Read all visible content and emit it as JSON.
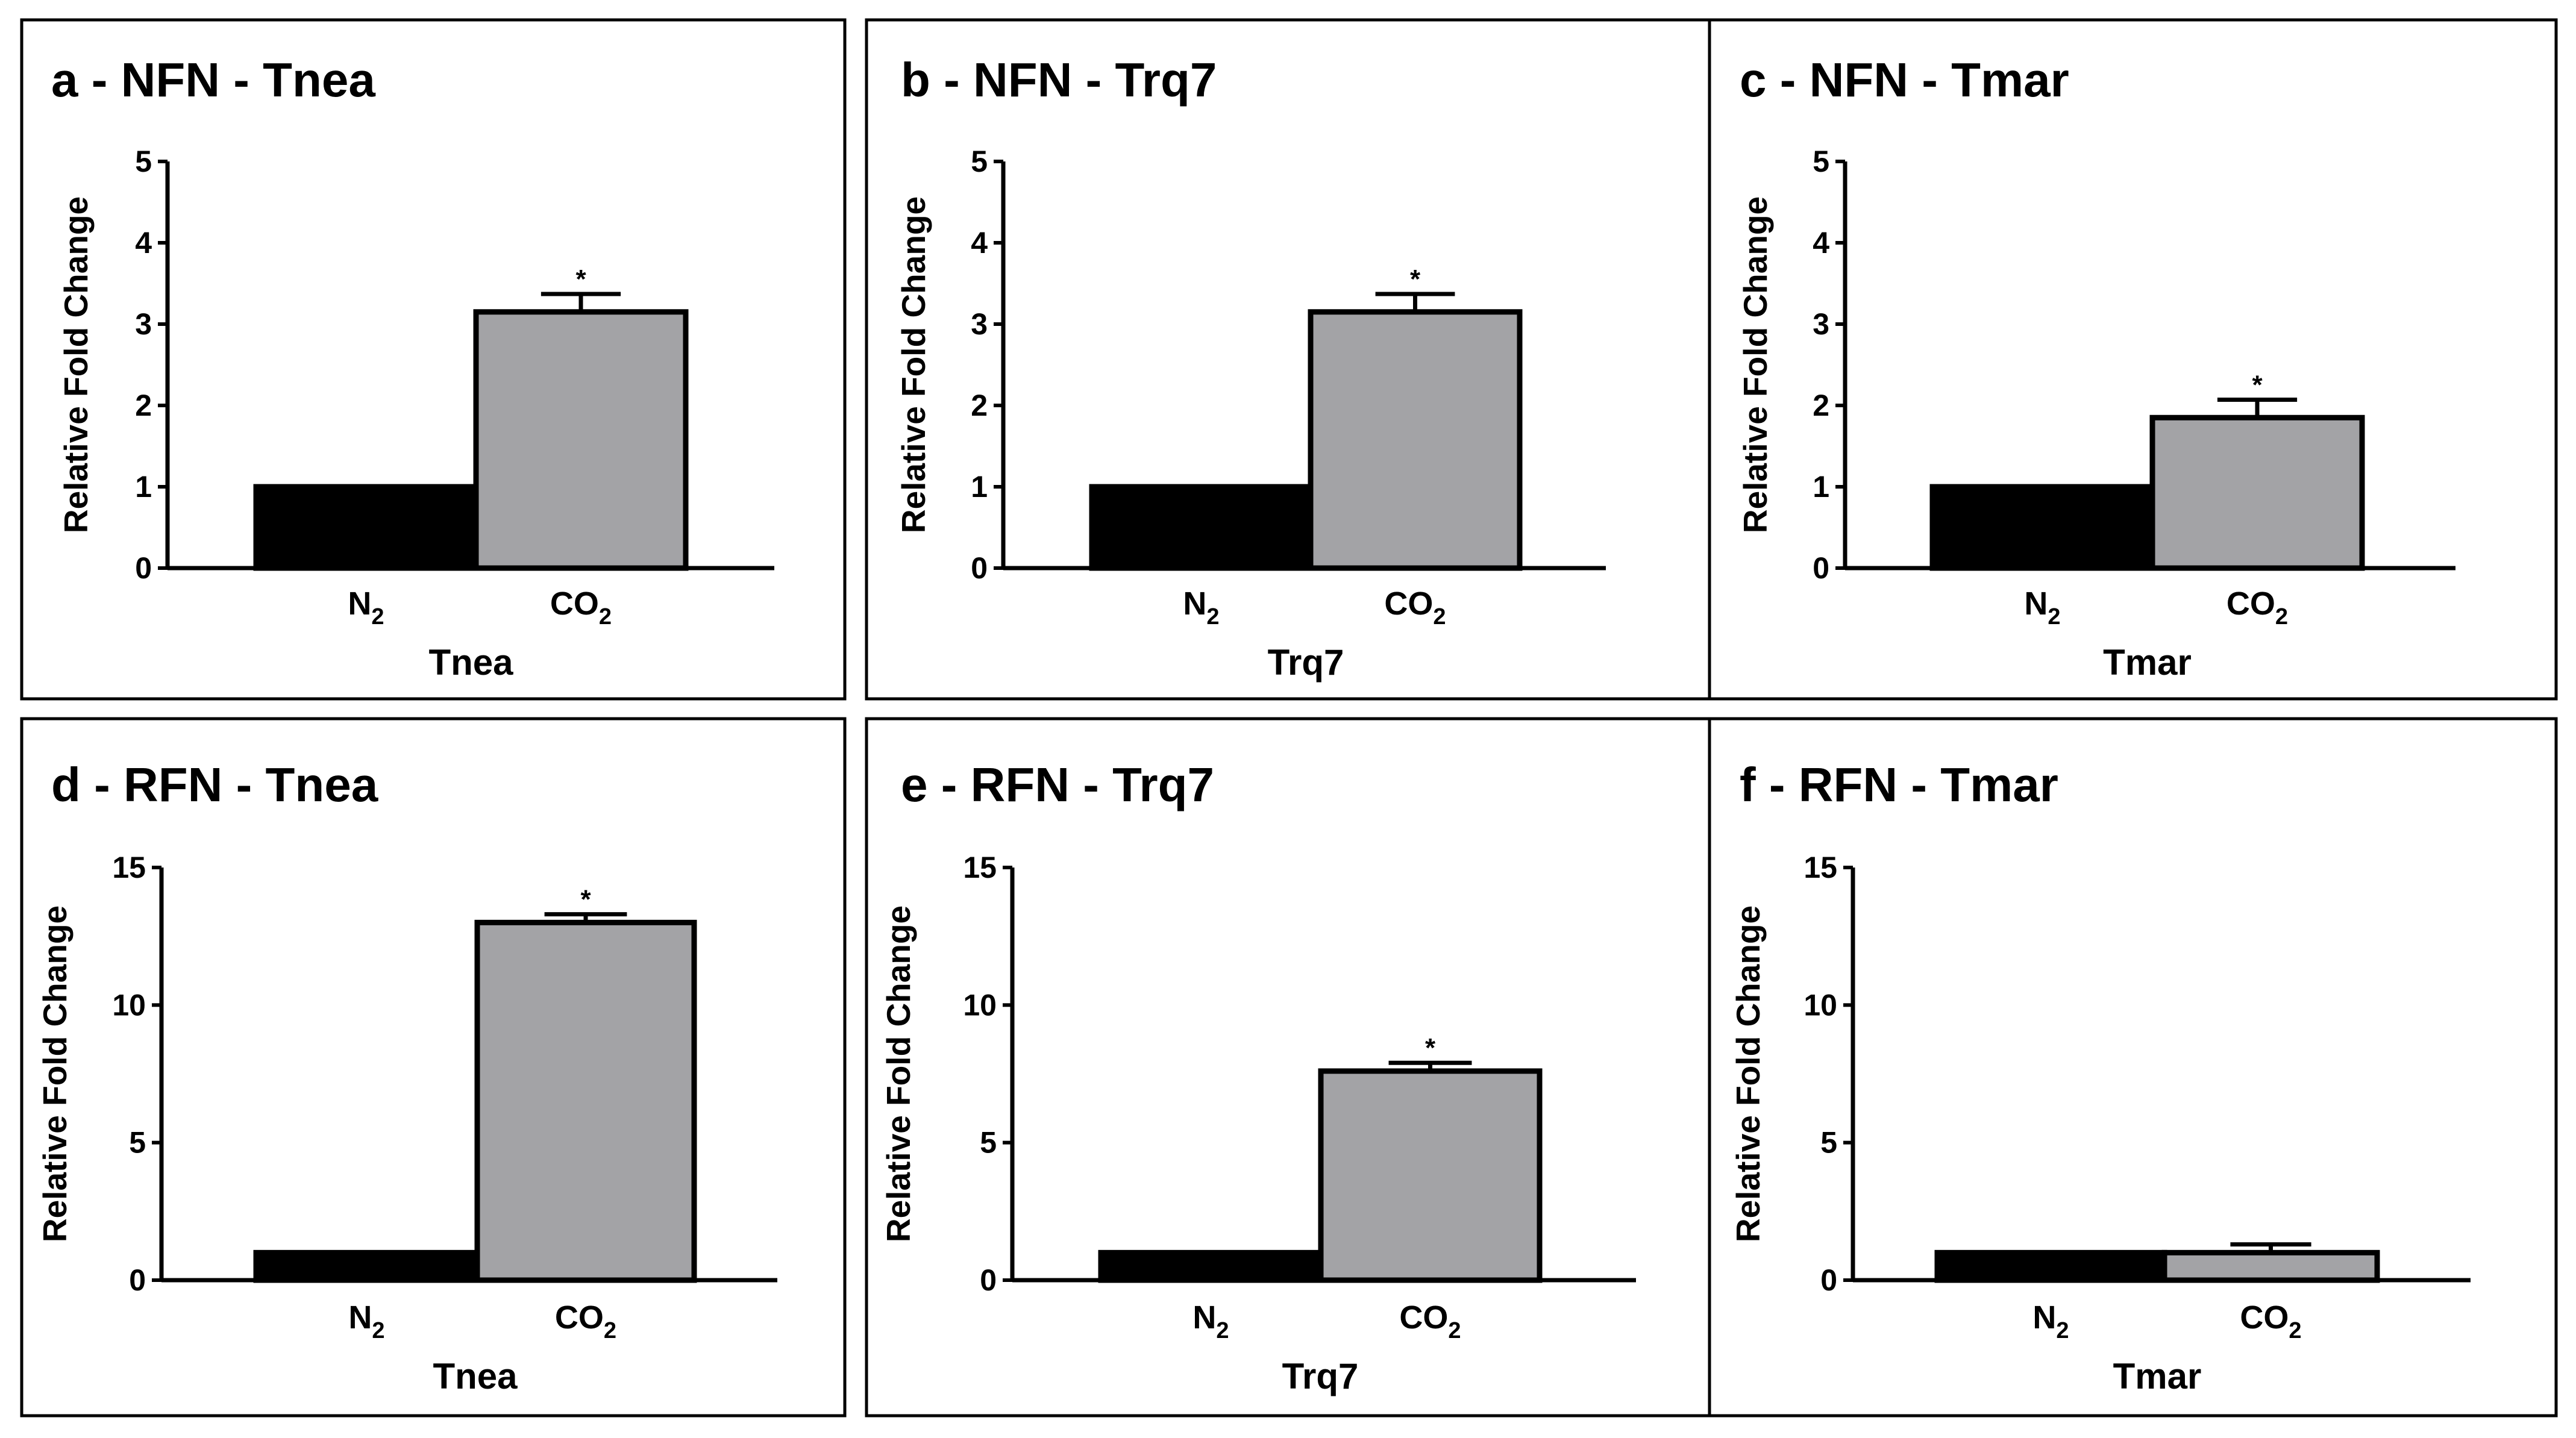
{
  "chart_data": [
    {
      "id": "a",
      "type": "bar",
      "title": "a - NFN - Tnea",
      "categories": [
        {
          "base": "N",
          "sub": "2"
        },
        {
          "base": "CO",
          "sub": "2"
        }
      ],
      "values": [
        1.0,
        3.15
      ],
      "errors": [
        0,
        0.22
      ],
      "significance": [
        "",
        "*"
      ],
      "bar_colors": [
        "#000000",
        "#a3a3a6"
      ],
      "xlabel": "Tnea",
      "ylabel": "Relative Fold Change",
      "ylim": [
        0,
        5
      ],
      "yticks": [
        0,
        1,
        2,
        3,
        4,
        5
      ]
    },
    {
      "id": "b",
      "type": "bar",
      "title": "b - NFN - Trq7",
      "categories": [
        {
          "base": "N",
          "sub": "2"
        },
        {
          "base": "CO",
          "sub": "2"
        }
      ],
      "values": [
        1.0,
        3.15
      ],
      "errors": [
        0,
        0.22
      ],
      "significance": [
        "",
        "*"
      ],
      "bar_colors": [
        "#000000",
        "#a3a3a6"
      ],
      "xlabel": "Trq7",
      "ylabel": "Relative Fold Change",
      "ylim": [
        0,
        5
      ],
      "yticks": [
        0,
        1,
        2,
        3,
        4,
        5
      ]
    },
    {
      "id": "c",
      "type": "bar",
      "title": "c - NFN - Tmar",
      "categories": [
        {
          "base": "N",
          "sub": "2"
        },
        {
          "base": "CO",
          "sub": "2"
        }
      ],
      "values": [
        1.0,
        1.85
      ],
      "errors": [
        0,
        0.22
      ],
      "significance": [
        "",
        "*"
      ],
      "bar_colors": [
        "#000000",
        "#a3a3a6"
      ],
      "xlabel": "Tmar",
      "ylabel": "Relative Fold Change",
      "ylim": [
        0,
        5
      ],
      "yticks": [
        0,
        1,
        2,
        3,
        4,
        5
      ]
    },
    {
      "id": "d",
      "type": "bar",
      "title": "d - RFN - Tnea",
      "categories": [
        {
          "base": "N",
          "sub": "2"
        },
        {
          "base": "CO",
          "sub": "2"
        }
      ],
      "values": [
        1.0,
        13.0
      ],
      "errors": [
        0,
        0.3
      ],
      "significance": [
        "",
        "*"
      ],
      "bar_colors": [
        "#000000",
        "#a3a3a6"
      ],
      "xlabel": "Tnea",
      "ylabel": "Relative Fold Change",
      "ylim": [
        0,
        15
      ],
      "yticks": [
        0,
        5,
        10,
        15
      ]
    },
    {
      "id": "e",
      "type": "bar",
      "title": "e - RFN - Trq7",
      "categories": [
        {
          "base": "N",
          "sub": "2"
        },
        {
          "base": "CO",
          "sub": "2"
        }
      ],
      "values": [
        1.0,
        7.6
      ],
      "errors": [
        0,
        0.3
      ],
      "significance": [
        "",
        "*"
      ],
      "bar_colors": [
        "#000000",
        "#a3a3a6"
      ],
      "xlabel": "Trq7",
      "ylabel": "Relative Fold Change",
      "ylim": [
        0,
        15
      ],
      "yticks": [
        0,
        5,
        10,
        15
      ]
    },
    {
      "id": "f",
      "type": "bar",
      "title": "f - RFN - Tmar",
      "categories": [
        {
          "base": "N",
          "sub": "2"
        },
        {
          "base": "CO",
          "sub": "2"
        }
      ],
      "values": [
        1.0,
        1.0
      ],
      "errors": [
        0,
        0.3
      ],
      "significance": [
        "",
        ""
      ],
      "bar_colors": [
        "#000000",
        "#a3a3a6"
      ],
      "xlabel": "Tmar",
      "ylabel": "Relative Fold Change",
      "ylim": [
        0,
        15
      ],
      "yticks": [
        0,
        5,
        10,
        15
      ]
    }
  ]
}
